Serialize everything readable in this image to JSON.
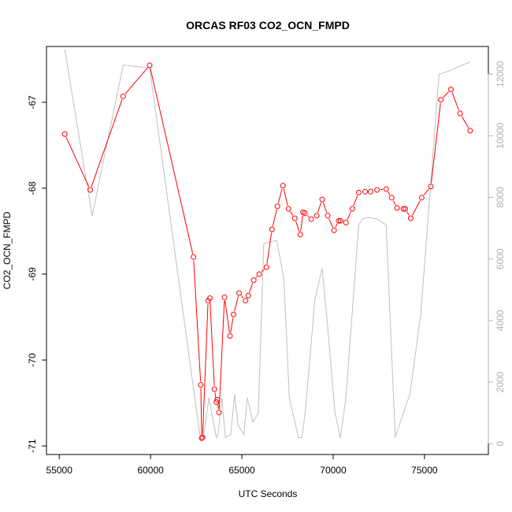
{
  "chart_data": {
    "type": "line",
    "title": "ORCAS RF03 CO2_OCN_FMPD",
    "xlabel": "UTC Seconds",
    "ylabel": "CO2_OCN_FMPD",
    "xlim": [
      54300,
      78500
    ],
    "ylim": [
      -71.1,
      -66.35
    ],
    "y2lim": [
      -350,
      12900
    ],
    "xticks": [
      55000,
      60000,
      65000,
      70000,
      75000
    ],
    "xtick_labels": [
      "55000",
      "60000",
      "65000",
      "70000",
      "75000"
    ],
    "yticks": [
      -71,
      -70,
      -69,
      -68,
      -67
    ],
    "ytick_labels": [
      "-71",
      "-70",
      "-69",
      "-68",
      "-67"
    ],
    "y2ticks": [
      0,
      2000,
      4000,
      6000,
      8000,
      10000,
      12000
    ],
    "y2tick_labels": [
      "0",
      "2000",
      "4000",
      "6000",
      "8000",
      "10000",
      "12000"
    ],
    "grid": false,
    "series": [
      {
        "color": "#ff0000",
        "axis": "left",
        "marker": "open-circle",
        "x": [
          55300,
          56700,
          58500,
          59950,
          62350,
          62750,
          62800,
          62850,
          63150,
          63250,
          63500,
          63600,
          63650,
          63750,
          64050,
          64350,
          64550,
          64850,
          65200,
          65350,
          65650,
          65950,
          66350,
          66650,
          66950,
          67250,
          67550,
          67900,
          68200,
          68350,
          68450,
          68800,
          69100,
          69400,
          69700,
          70050,
          70300,
          70400,
          70700,
          71050,
          71400,
          71750,
          72050,
          72400,
          72900,
          73200,
          73500,
          73850,
          73950,
          74250,
          74850,
          75350,
          75900,
          76450,
          76950,
          77500
        ],
        "y": [
          -67.37,
          -68.02,
          -66.93,
          -66.57,
          -68.8,
          -70.29,
          -70.91,
          -70.9,
          -69.31,
          -69.28,
          -70.34,
          -70.49,
          -70.46,
          -70.61,
          -69.27,
          -69.72,
          -69.47,
          -69.22,
          -69.31,
          -69.25,
          -69.07,
          -69.0,
          -68.92,
          -68.48,
          -68.21,
          -67.97,
          -68.24,
          -68.35,
          -68.54,
          -68.28,
          -68.29,
          -68.36,
          -68.32,
          -68.13,
          -68.32,
          -68.49,
          -68.38,
          -68.38,
          -68.4,
          -68.24,
          -68.05,
          -68.04,
          -68.04,
          -68.02,
          -68.01,
          -68.11,
          -68.23,
          -68.24,
          -68.24,
          -68.35,
          -68.11,
          -67.98,
          -66.97,
          -66.85,
          -67.13,
          -67.33
        ]
      },
      {
        "color": "#c0c0c0",
        "axis": "right",
        "marker": "none",
        "x": [
          55300,
          56800,
          58500,
          59950,
          62700,
          62900,
          63200,
          63600,
          63700,
          63900,
          64100,
          64400,
          64600,
          64800,
          65100,
          65300,
          65600,
          65900,
          66200,
          66900,
          67300,
          67600,
          68100,
          68300,
          68500,
          69000,
          69400,
          69700,
          70100,
          70400,
          70700,
          71400,
          71600,
          71900,
          72400,
          72900,
          73400,
          73900,
          74200,
          74800,
          75800,
          76300,
          77500
        ],
        "y": [
          12800,
          7400,
          12300,
          12200,
          300,
          200,
          1500,
          200,
          300,
          1500,
          200,
          300,
          1600,
          600,
          300,
          1500,
          700,
          1000,
          6500,
          6600,
          5400,
          1500,
          200,
          200,
          1200,
          4700,
          5700,
          3800,
          1000,
          200,
          1500,
          7100,
          7300,
          7350,
          7300,
          7100,
          200,
          1100,
          1600,
          4200,
          12000,
          12100,
          12400
        ]
      }
    ]
  }
}
